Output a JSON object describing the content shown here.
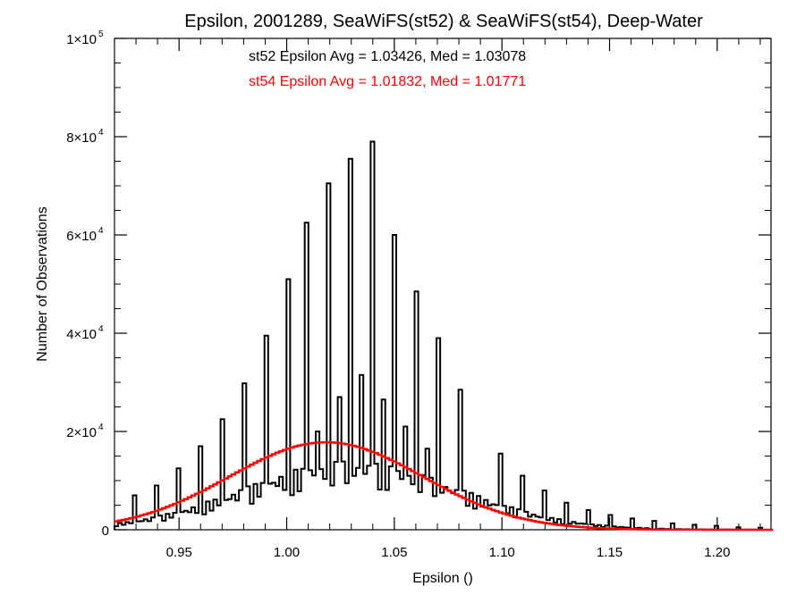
{
  "chart_data": {
    "type": "bar",
    "title": "Epsilon, 2001289, SeaWiFS(st52) & SeaWiFS(st54), Deep-Water",
    "xlabel": "Epsilon ()",
    "ylabel": "Number of Observations",
    "xlim": [
      0.92,
      1.225
    ],
    "ylim": [
      0,
      100000
    ],
    "x_ticks": [
      {
        "value": 0.95,
        "label": "0.95"
      },
      {
        "value": 1.0,
        "label": "1.00"
      },
      {
        "value": 1.05,
        "label": "1.05"
      },
      {
        "value": 1.1,
        "label": "1.10"
      },
      {
        "value": 1.15,
        "label": "1.15"
      },
      {
        "value": 1.2,
        "label": "1.20"
      }
    ],
    "y_ticks": [
      {
        "value": 0,
        "mant": "0",
        "exp": ""
      },
      {
        "value": 20000,
        "mant": "2×10",
        "exp": "4"
      },
      {
        "value": 40000,
        "mant": "4×10",
        "exp": "4"
      },
      {
        "value": 60000,
        "mant": "6×10",
        "exp": "4"
      },
      {
        "value": 80000,
        "mant": "8×10",
        "exp": "4"
      },
      {
        "value": 100000,
        "mant": "1×10",
        "exp": "5"
      }
    ],
    "annotations": [
      {
        "text": "st52 Epsilon Avg = 1.03426, Med = 1.03078",
        "color": "#000000"
      },
      {
        "text": "st54 Epsilon Avg = 1.01832, Med = 1.01771",
        "color": "#ff0000"
      }
    ],
    "series": [
      {
        "color": "#000000",
        "style": "histogram",
        "spikes": [
          {
            "x": 0.93,
            "y": 7000
          },
          {
            "x": 0.94,
            "y": 9000
          },
          {
            "x": 0.95,
            "y": 12500
          },
          {
            "x": 0.96,
            "y": 17000
          },
          {
            "x": 0.97,
            "y": 22500
          },
          {
            "x": 0.98,
            "y": 29800
          },
          {
            "x": 0.99,
            "y": 39500
          },
          {
            "x": 1.0,
            "y": 51000
          },
          {
            "x": 1.01,
            "y": 62500
          },
          {
            "x": 1.02,
            "y": 70500
          },
          {
            "x": 1.03,
            "y": 75500
          },
          {
            "x": 1.04,
            "y": 79000
          },
          {
            "x": 1.05,
            "y": 60000
          },
          {
            "x": 1.06,
            "y": 48500
          },
          {
            "x": 1.07,
            "y": 39000
          },
          {
            "x": 1.08,
            "y": 28500
          },
          {
            "x": 1.09,
            "y": 21000
          },
          {
            "x": 1.1,
            "y": 15500
          },
          {
            "x": 1.11,
            "y": 11000
          },
          {
            "x": 1.12,
            "y": 8000
          },
          {
            "x": 1.13,
            "y": 5500
          },
          {
            "x": 1.14,
            "y": 4000
          },
          {
            "x": 1.15,
            "y": 3000
          },
          {
            "x": 1.16,
            "y": 2300
          },
          {
            "x": 1.17,
            "y": 1800
          },
          {
            "x": 1.18,
            "y": 1300
          },
          {
            "x": 1.19,
            "y": 1000
          },
          {
            "x": 1.2,
            "y": 800
          },
          {
            "x": 1.21,
            "y": 500
          },
          {
            "x": 1.22,
            "y": 400
          }
        ],
        "half_spikes": [
          {
            "x": 1.005,
            "y": 11000
          },
          {
            "x": 1.015,
            "y": 20000
          },
          {
            "x": 1.025,
            "y": 27000
          },
          {
            "x": 1.035,
            "y": 31500
          },
          {
            "x": 1.045,
            "y": 26500
          },
          {
            "x": 1.055,
            "y": 21000
          },
          {
            "x": 1.065,
            "y": 16500
          }
        ],
        "baseline_peak": 14000,
        "baseline_center": 1.03,
        "baseline_width": 0.05
      },
      {
        "color": "#ff0000",
        "style": "gaussian-line",
        "peak": 17800,
        "center": 1.01832,
        "width": 0.045
      }
    ]
  }
}
